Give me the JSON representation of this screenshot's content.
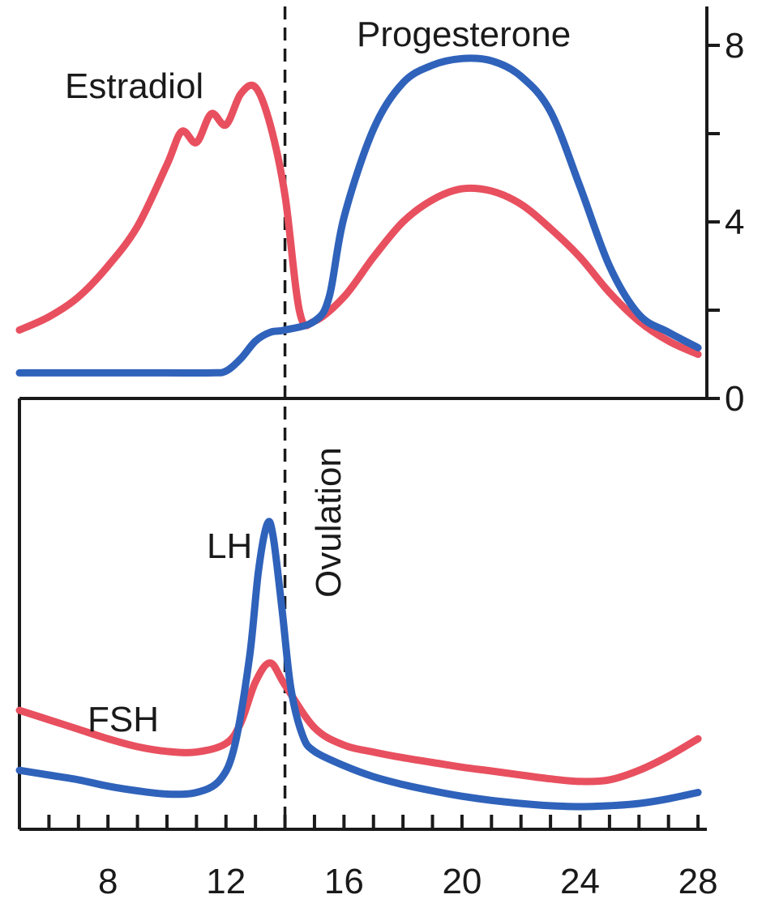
{
  "chart_data": [
    {
      "type": "line",
      "panel": "top",
      "x_range": [
        5,
        28.3
      ],
      "ylim": [
        0,
        8.8
      ],
      "y_axis_side": "right",
      "y_ticks": [
        0,
        2,
        4,
        6,
        8
      ],
      "y_tick_labels": [
        "0",
        "4",
        "8"
      ],
      "annotation": "Ovulation",
      "ovulation_day": 14,
      "series": [
        {
          "name": "Estradiol",
          "color": "#e8505f",
          "points": [
            [
              5,
              1.55
            ],
            [
              6,
              1.85
            ],
            [
              7,
              2.3
            ],
            [
              8,
              3.0
            ],
            [
              9,
              3.9
            ],
            [
              10,
              5.3
            ],
            [
              10.5,
              6.05
            ],
            [
              11,
              5.8
            ],
            [
              11.5,
              6.45
            ],
            [
              12,
              6.2
            ],
            [
              12.5,
              6.9
            ],
            [
              13,
              7.05
            ],
            [
              13.5,
              6.2
            ],
            [
              14,
              4.6
            ],
            [
              14.5,
              1.95
            ],
            [
              15,
              1.75
            ],
            [
              16,
              2.3
            ],
            [
              17,
              3.2
            ],
            [
              18,
              4.0
            ],
            [
              19,
              4.5
            ],
            [
              20,
              4.75
            ],
            [
              21,
              4.7
            ],
            [
              22,
              4.4
            ],
            [
              23,
              3.85
            ],
            [
              24,
              3.2
            ],
            [
              25,
              2.4
            ],
            [
              26,
              1.75
            ],
            [
              27,
              1.3
            ],
            [
              28,
              1.0
            ]
          ]
        },
        {
          "name": "Progesterone",
          "color": "#2f62ba",
          "points": [
            [
              5,
              0.58
            ],
            [
              6,
              0.58
            ],
            [
              8,
              0.58
            ],
            [
              10,
              0.58
            ],
            [
              11.5,
              0.58
            ],
            [
              12,
              0.62
            ],
            [
              12.5,
              0.9
            ],
            [
              13,
              1.3
            ],
            [
              13.5,
              1.5
            ],
            [
              14,
              1.55
            ],
            [
              15,
              1.75
            ],
            [
              15.5,
              2.3
            ],
            [
              16,
              4.1
            ],
            [
              17,
              6.1
            ],
            [
              18,
              7.15
            ],
            [
              19,
              7.55
            ],
            [
              20,
              7.7
            ],
            [
              21,
              7.65
            ],
            [
              22,
              7.3
            ],
            [
              23,
              6.5
            ],
            [
              24,
              4.8
            ],
            [
              25,
              3.0
            ],
            [
              26,
              1.9
            ],
            [
              27,
              1.5
            ],
            [
              28,
              1.15
            ]
          ]
        }
      ]
    },
    {
      "type": "line",
      "panel": "bottom",
      "x_range": [
        5,
        28.3
      ],
      "x_ticks": [
        6,
        7,
        8,
        9,
        10,
        11,
        12,
        13,
        14,
        15,
        16,
        17,
        18,
        19,
        20,
        21,
        22,
        23,
        24,
        25,
        26,
        27,
        28
      ],
      "x_tick_labels": [
        "8",
        "12",
        "16",
        "20",
        "24",
        "28"
      ],
      "x_label_values": [
        8,
        12,
        16,
        20,
        24,
        28
      ],
      "ylim": [
        0,
        10
      ],
      "series": [
        {
          "name": "FSH",
          "color": "#e8505f",
          "points": [
            [
              5,
              3.1
            ],
            [
              6,
              2.8
            ],
            [
              7,
              2.5
            ],
            [
              8,
              2.2
            ],
            [
              9,
              1.95
            ],
            [
              10,
              1.8
            ],
            [
              11,
              1.78
            ],
            [
              12,
              2.05
            ],
            [
              12.5,
              2.7
            ],
            [
              13,
              4.0
            ],
            [
              13.5,
              4.6
            ],
            [
              14,
              3.9
            ],
            [
              15,
              2.55
            ],
            [
              16,
              2.0
            ],
            [
              17,
              1.78
            ],
            [
              18,
              1.6
            ],
            [
              19,
              1.45
            ],
            [
              20,
              1.3
            ],
            [
              21,
              1.18
            ],
            [
              22,
              1.05
            ],
            [
              23,
              0.93
            ],
            [
              24,
              0.85
            ],
            [
              25,
              0.9
            ],
            [
              26,
              1.2
            ],
            [
              27,
              1.65
            ],
            [
              28,
              2.2
            ]
          ]
        },
        {
          "name": "LH",
          "color": "#2f62ba",
          "points": [
            [
              5,
              1.2
            ],
            [
              6,
              1.05
            ],
            [
              7,
              0.9
            ],
            [
              8,
              0.7
            ],
            [
              9,
              0.55
            ],
            [
              10,
              0.45
            ],
            [
              11,
              0.5
            ],
            [
              11.8,
              0.9
            ],
            [
              12.3,
              2.0
            ],
            [
              12.8,
              4.8
            ],
            [
              13.1,
              7.5
            ],
            [
              13.4,
              9.0
            ],
            [
              13.6,
              8.6
            ],
            [
              13.9,
              6.3
            ],
            [
              14.2,
              3.8
            ],
            [
              14.6,
              2.3
            ],
            [
              15,
              1.8
            ],
            [
              16,
              1.35
            ],
            [
              17,
              1.0
            ],
            [
              18,
              0.75
            ],
            [
              19,
              0.55
            ],
            [
              20,
              0.38
            ],
            [
              21,
              0.25
            ],
            [
              22,
              0.15
            ],
            [
              23,
              0.08
            ],
            [
              24,
              0.05
            ],
            [
              25,
              0.08
            ],
            [
              26,
              0.15
            ],
            [
              27,
              0.3
            ],
            [
              28,
              0.5
            ]
          ]
        }
      ]
    }
  ]
}
